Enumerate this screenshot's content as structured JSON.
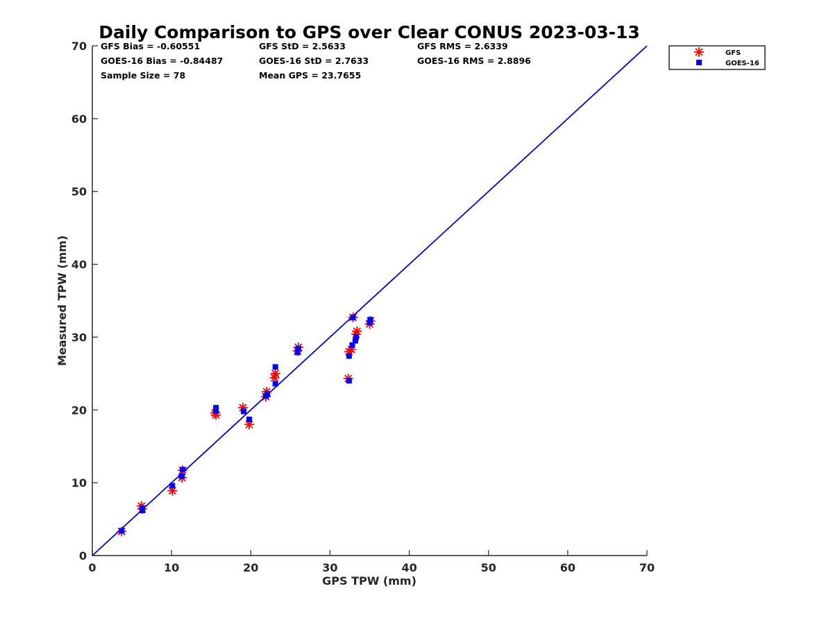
{
  "chart_data": {
    "type": "scatter",
    "title": "Daily Comparison to GPS over Clear CONUS 2023-03-13",
    "xlabel": "GPS TPW (mm)",
    "ylabel": "Measured TPW (mm)",
    "xlim": [
      0,
      70
    ],
    "ylim": [
      0,
      70
    ],
    "xticks": [
      "0",
      "10",
      "20",
      "30",
      "40",
      "50",
      "60",
      "70"
    ],
    "yticks": [
      "0",
      "10",
      "20",
      "30",
      "40",
      "50",
      "60",
      "70"
    ],
    "grid": false,
    "legend_position": "top-right (outside axes)",
    "stats": [
      "GFS Bias = -0.60551",
      "GFS StD = 2.5633",
      "GFS RMS = 2.6339",
      "GOES-16 Bias = -0.84487",
      "GOES-16 StD = 2.7633",
      "GOES-16 RMS = 2.8896",
      "Sample Size = 78",
      "Mean GPS = 23.7655"
    ],
    "reference_line": {
      "name": "1:1 line",
      "x": [
        0,
        70
      ],
      "y": [
        0,
        70
      ],
      "color": "#0000dd"
    },
    "series": [
      {
        "name": "GFS",
        "marker": "asterisk",
        "color": "#ff0000",
        "points": [
          [
            3.7,
            3.3
          ],
          [
            6.2,
            6.8
          ],
          [
            6.3,
            6.4
          ],
          [
            10.1,
            8.9
          ],
          [
            11.3,
            10.7
          ],
          [
            11.4,
            11.7
          ],
          [
            15.5,
            19.6
          ],
          [
            15.6,
            19.3
          ],
          [
            19.0,
            20.3
          ],
          [
            19.8,
            18.0
          ],
          [
            21.9,
            21.8
          ],
          [
            22.0,
            22.5
          ],
          [
            23.0,
            24.4
          ],
          [
            23.1,
            25.0
          ],
          [
            25.9,
            28.1
          ],
          [
            26.0,
            28.6
          ],
          [
            32.3,
            24.3
          ],
          [
            32.4,
            28.0
          ],
          [
            32.7,
            28.3
          ],
          [
            32.9,
            32.7
          ],
          [
            33.3,
            30.4
          ],
          [
            33.4,
            30.8
          ],
          [
            35.0,
            31.8
          ],
          [
            35.1,
            32.2
          ]
        ]
      },
      {
        "name": "GOES-16",
        "marker": "square",
        "color": "#0000ff",
        "points": [
          [
            3.7,
            3.4
          ],
          [
            6.3,
            6.2
          ],
          [
            6.3,
            6.5
          ],
          [
            10.1,
            9.6
          ],
          [
            11.3,
            10.9
          ],
          [
            11.4,
            11.8
          ],
          [
            15.6,
            20.3
          ],
          [
            15.6,
            19.9
          ],
          [
            19.1,
            19.8
          ],
          [
            19.8,
            18.7
          ],
          [
            21.9,
            21.9
          ],
          [
            22.1,
            22.2
          ],
          [
            23.1,
            23.6
          ],
          [
            23.1,
            25.9
          ],
          [
            25.9,
            27.9
          ],
          [
            26.0,
            28.4
          ],
          [
            32.4,
            24.0
          ],
          [
            32.4,
            27.4
          ],
          [
            32.8,
            28.9
          ],
          [
            32.9,
            32.7
          ],
          [
            33.2,
            29.5
          ],
          [
            33.3,
            30.0
          ],
          [
            35.0,
            32.0
          ],
          [
            35.1,
            32.4
          ]
        ]
      }
    ]
  }
}
